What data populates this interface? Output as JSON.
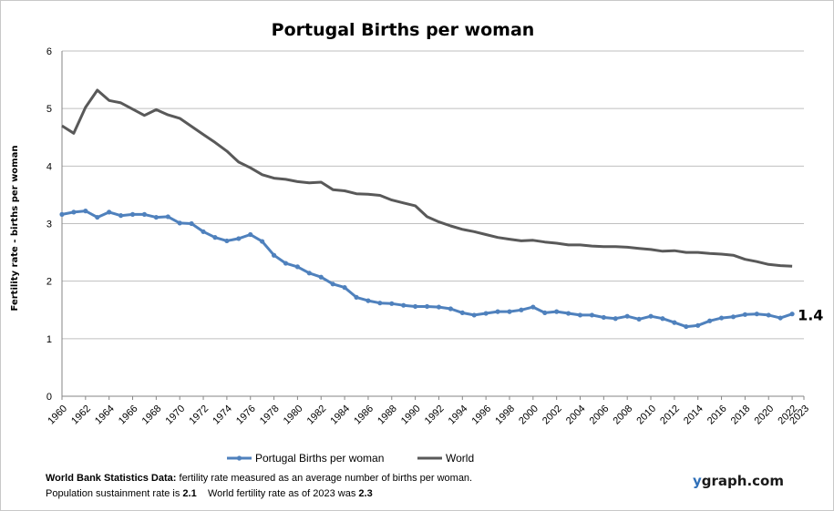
{
  "chart_data": {
    "type": "line",
    "title": "Portugal Births per woman",
    "ylabel": "Fertility rate  - births per woman",
    "xlabel": "",
    "ylim": [
      0,
      6
    ],
    "yticks": [
      0,
      1,
      2,
      3,
      4,
      5,
      6
    ],
    "xlim": [
      1960,
      2023
    ],
    "xticks": [
      1960,
      1962,
      1964,
      1966,
      1968,
      1970,
      1972,
      1974,
      1976,
      1978,
      1980,
      1982,
      1984,
      1986,
      1988,
      1990,
      1992,
      1994,
      1996,
      1998,
      2000,
      2002,
      2004,
      2006,
      2008,
      2010,
      2012,
      2014,
      2016,
      2018,
      2020,
      2022,
      2023
    ],
    "grid": true,
    "legend_position": "bottom",
    "end_label": "1.4",
    "series": [
      {
        "name": "Portugal Births per woman",
        "color": "#4f81bd",
        "markers": true,
        "x": [
          1960,
          1961,
          1962,
          1963,
          1964,
          1965,
          1966,
          1967,
          1968,
          1969,
          1970,
          1971,
          1972,
          1973,
          1974,
          1975,
          1976,
          1977,
          1978,
          1979,
          1980,
          1981,
          1982,
          1983,
          1984,
          1985,
          1986,
          1987,
          1988,
          1989,
          1990,
          1991,
          1992,
          1993,
          1994,
          1995,
          1996,
          1997,
          1998,
          1999,
          2000,
          2001,
          2002,
          2003,
          2004,
          2005,
          2006,
          2007,
          2008,
          2009,
          2010,
          2011,
          2012,
          2013,
          2014,
          2015,
          2016,
          2017,
          2018,
          2019,
          2020,
          2021,
          2022
        ],
        "values": [
          3.16,
          3.2,
          3.22,
          3.11,
          3.2,
          3.14,
          3.16,
          3.16,
          3.11,
          3.12,
          3.01,
          3.0,
          2.86,
          2.76,
          2.7,
          2.74,
          2.81,
          2.69,
          2.45,
          2.31,
          2.25,
          2.14,
          2.07,
          1.95,
          1.89,
          1.72,
          1.66,
          1.62,
          1.61,
          1.58,
          1.56,
          1.56,
          1.55,
          1.52,
          1.45,
          1.41,
          1.44,
          1.47,
          1.47,
          1.5,
          1.55,
          1.45,
          1.47,
          1.44,
          1.41,
          1.41,
          1.37,
          1.35,
          1.39,
          1.34,
          1.39,
          1.35,
          1.28,
          1.21,
          1.23,
          1.31,
          1.36,
          1.38,
          1.42,
          1.43,
          1.41,
          1.36,
          1.43
        ]
      },
      {
        "name": "World",
        "color": "#595959",
        "markers": false,
        "x": [
          1960,
          1961,
          1962,
          1963,
          1964,
          1965,
          1966,
          1967,
          1968,
          1969,
          1970,
          1971,
          1972,
          1973,
          1974,
          1975,
          1976,
          1977,
          1978,
          1979,
          1980,
          1981,
          1982,
          1983,
          1984,
          1985,
          1986,
          1987,
          1988,
          1989,
          1990,
          1991,
          1992,
          1993,
          1994,
          1995,
          1996,
          1997,
          1998,
          1999,
          2000,
          2001,
          2002,
          2003,
          2004,
          2005,
          2006,
          2007,
          2008,
          2009,
          2010,
          2011,
          2012,
          2013,
          2014,
          2015,
          2016,
          2017,
          2018,
          2019,
          2020,
          2021,
          2022
        ],
        "values": [
          4.7,
          4.57,
          5.02,
          5.32,
          5.14,
          5.1,
          4.99,
          4.88,
          4.98,
          4.89,
          4.83,
          4.69,
          4.55,
          4.41,
          4.26,
          4.07,
          3.97,
          3.85,
          3.79,
          3.77,
          3.73,
          3.71,
          3.72,
          3.59,
          3.57,
          3.52,
          3.51,
          3.49,
          3.41,
          3.36,
          3.31,
          3.12,
          3.03,
          2.96,
          2.9,
          2.86,
          2.81,
          2.76,
          2.73,
          2.7,
          2.71,
          2.68,
          2.66,
          2.63,
          2.63,
          2.61,
          2.6,
          2.6,
          2.59,
          2.57,
          2.55,
          2.52,
          2.53,
          2.5,
          2.5,
          2.48,
          2.47,
          2.45,
          2.38,
          2.34,
          2.29,
          2.27,
          2.26
        ]
      }
    ]
  },
  "footer": {
    "source_label": "World Bank Statistics Data:",
    "source_text": " fertility rate measured as an average number  of births per woman.",
    "line2_prefix": "Population sustainment rate is ",
    "sustainment_rate": "2.1",
    "line2_middle": "    World fertility rate as of 2023 was ",
    "world_rate": "2.3"
  },
  "brand": {
    "y": "y",
    "rest": "graph.com"
  }
}
